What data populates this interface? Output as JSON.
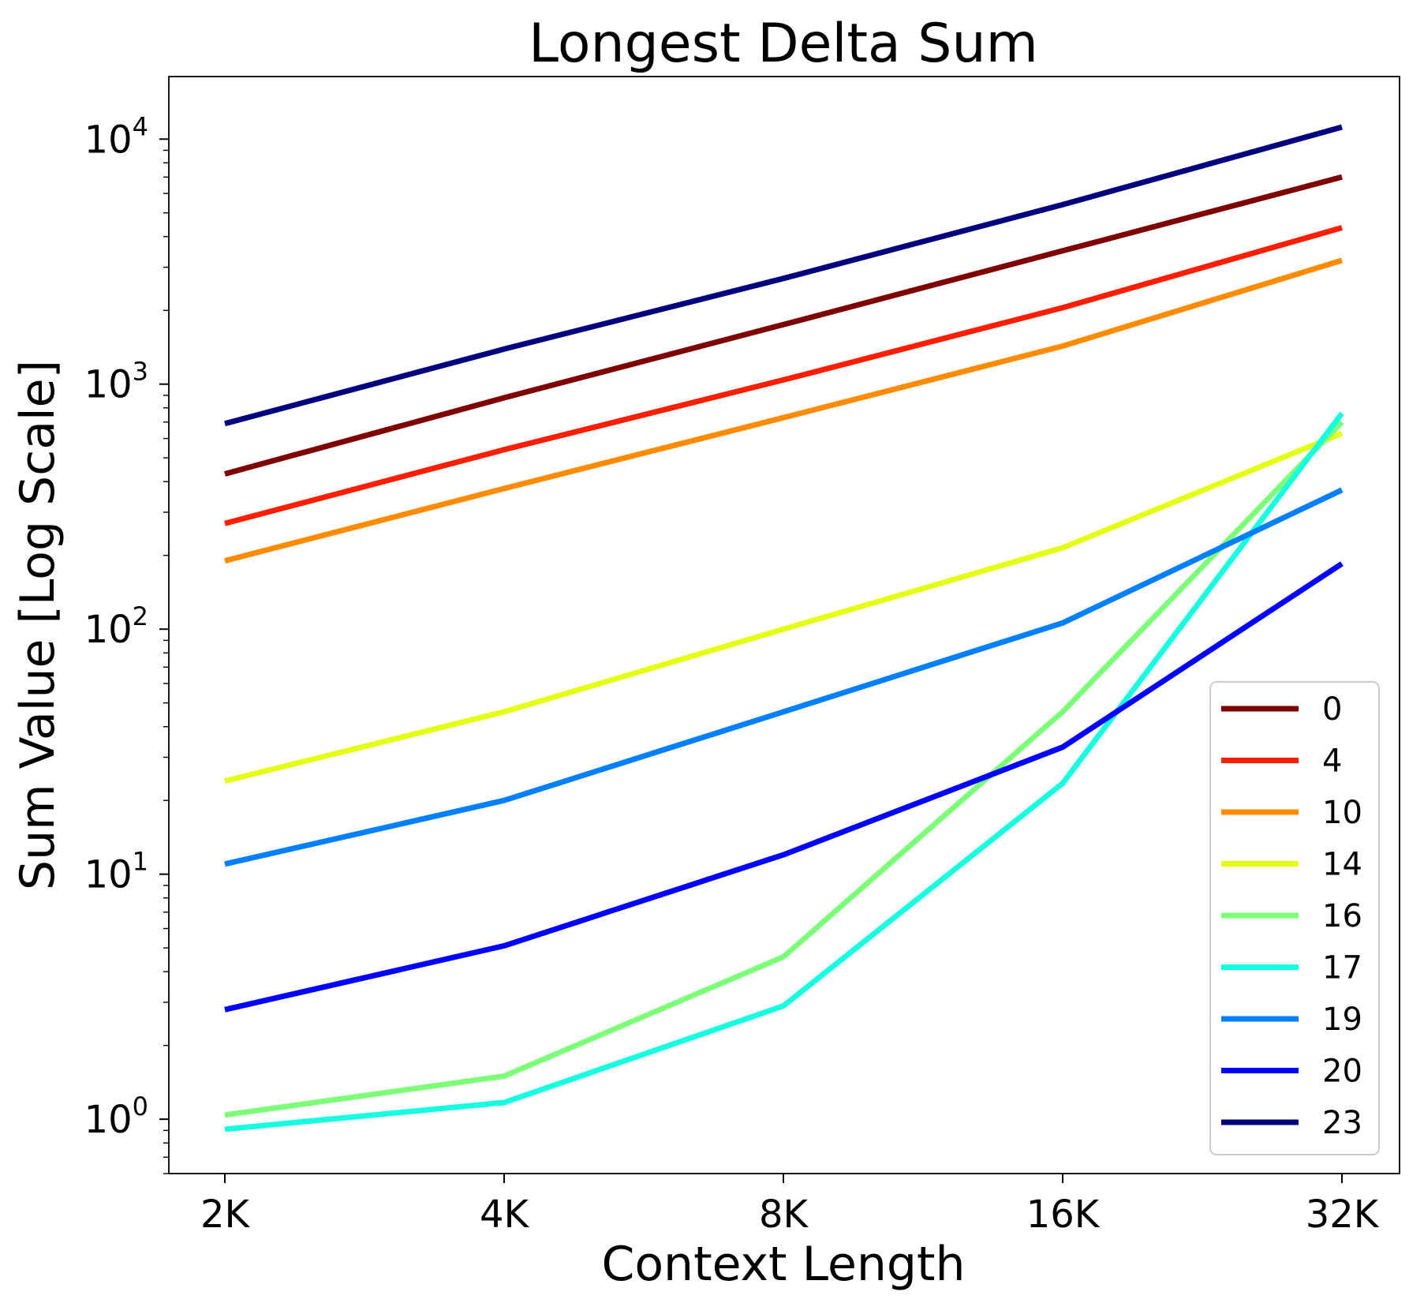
{
  "chart_data": {
    "type": "line",
    "title": "Longest Delta Sum",
    "xlabel": "Context Length",
    "ylabel": "Sum Value [Log Scale]",
    "yscale": "log",
    "ylim": [
      0.6,
      18000
    ],
    "x": [
      "2K",
      "4K",
      "8K",
      "16K",
      "32K"
    ],
    "yticks": [
      {
        "value": 1,
        "base": "10",
        "exp": "0"
      },
      {
        "value": 10,
        "base": "10",
        "exp": "1"
      },
      {
        "value": 100,
        "base": "10",
        "exp": "2"
      },
      {
        "value": 1000,
        "base": "10",
        "exp": "3"
      },
      {
        "value": 10000,
        "base": "10",
        "exp": "4"
      }
    ],
    "grid": false,
    "legend_position": "lower-right",
    "series": [
      {
        "name": "0",
        "color": "#7f0000",
        "values": [
          430,
          880,
          1750,
          3500,
          7000
        ]
      },
      {
        "name": "4",
        "color": "#ff1e00",
        "values": [
          270,
          540,
          1040,
          2050,
          4350
        ]
      },
      {
        "name": "10",
        "color": "#ff8c00",
        "values": [
          190,
          375,
          730,
          1430,
          3200
        ]
      },
      {
        "name": "14",
        "color": "#e4ff13",
        "values": [
          24,
          46,
          100,
          215,
          630
        ]
      },
      {
        "name": "16",
        "color": "#7dff7a",
        "values": [
          1.04,
          1.5,
          4.6,
          46,
          700
        ]
      },
      {
        "name": "17",
        "color": "#16ffe1",
        "values": [
          0.91,
          1.17,
          2.9,
          23.5,
          760
        ]
      },
      {
        "name": "19",
        "color": "#0080ff",
        "values": [
          11,
          20,
          46,
          106,
          370
        ]
      },
      {
        "name": "20",
        "color": "#0000ff",
        "values": [
          2.8,
          5.1,
          12,
          33,
          185
        ]
      },
      {
        "name": "23",
        "color": "#00007f",
        "values": [
          690,
          1390,
          2700,
          5400,
          11200
        ]
      }
    ]
  }
}
